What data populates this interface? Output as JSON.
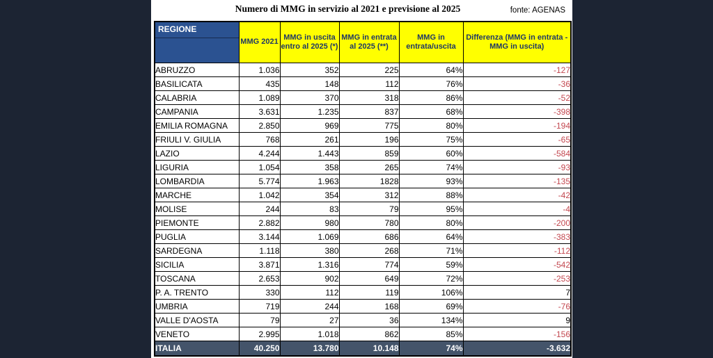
{
  "page": {
    "title": "Numero di MMG in servizio al 2021 e previsione al 2025",
    "source_label": "fonte: AGENAS"
  },
  "colors": {
    "page_background": "#1c2433",
    "panel_background": "#ffffff",
    "header_yellow": "#ffff00",
    "header_text_navy": "#1f3864",
    "regione_header_blue": "#2b5291",
    "total_row_background": "#44546a",
    "negative_value_red": "#c2474f"
  },
  "table": {
    "columns": [
      {
        "key": "regione",
        "label": "REGIONE"
      },
      {
        "key": "mmg2021",
        "label": "MMG 2021"
      },
      {
        "key": "uscita",
        "label": "MMG in uscita entro al 2025 (*)"
      },
      {
        "key": "entrata",
        "label": "MMG in entrata al 2025 (**)"
      },
      {
        "key": "ratio",
        "label": "MMG in entrata/uscita"
      },
      {
        "key": "diff",
        "label": "Differenza (MMG in entrata - MMG in uscita)"
      }
    ],
    "rows": [
      {
        "regione": "ABRUZZO",
        "mmg2021": "1.036",
        "uscita": "352",
        "entrata": "225",
        "ratio": "64%",
        "diff": "-127"
      },
      {
        "regione": "BASILICATA",
        "mmg2021": "435",
        "uscita": "148",
        "entrata": "112",
        "ratio": "76%",
        "diff": "-36"
      },
      {
        "regione": "CALABRIA",
        "mmg2021": "1.089",
        "uscita": "370",
        "entrata": "318",
        "ratio": "86%",
        "diff": "-52"
      },
      {
        "regione": "CAMPANIA",
        "mmg2021": "3.631",
        "uscita": "1.235",
        "entrata": "837",
        "ratio": "68%",
        "diff": "-398"
      },
      {
        "regione": "EMILIA ROMAGNA",
        "mmg2021": "2.850",
        "uscita": "969",
        "entrata": "775",
        "ratio": "80%",
        "diff": "-194"
      },
      {
        "regione": "FRIULI V. GIULIA",
        "mmg2021": "768",
        "uscita": "261",
        "entrata": "196",
        "ratio": "75%",
        "diff": "-65"
      },
      {
        "regione": "LAZIO",
        "mmg2021": "4.244",
        "uscita": "1.443",
        "entrata": "859",
        "ratio": "60%",
        "diff": "-584"
      },
      {
        "regione": "LIGURIA",
        "mmg2021": "1.054",
        "uscita": "358",
        "entrata": "265",
        "ratio": "74%",
        "diff": "-93"
      },
      {
        "regione": "LOMBARDIA",
        "mmg2021": "5.774",
        "uscita": "1.963",
        "entrata": "1828",
        "ratio": "93%",
        "diff": "-135"
      },
      {
        "regione": "MARCHE",
        "mmg2021": "1.042",
        "uscita": "354",
        "entrata": "312",
        "ratio": "88%",
        "diff": "-42"
      },
      {
        "regione": "MOLISE",
        "mmg2021": "244",
        "uscita": "83",
        "entrata": "79",
        "ratio": "95%",
        "diff": "-4"
      },
      {
        "regione": "PIEMONTE",
        "mmg2021": "2.882",
        "uscita": "980",
        "entrata": "780",
        "ratio": "80%",
        "diff": "-200"
      },
      {
        "regione": "PUGLIA",
        "mmg2021": "3.144",
        "uscita": "1.069",
        "entrata": "686",
        "ratio": "64%",
        "diff": "-383"
      },
      {
        "regione": "SARDEGNA",
        "mmg2021": "1.118",
        "uscita": "380",
        "entrata": "268",
        "ratio": "71%",
        "diff": "-112"
      },
      {
        "regione": "SICILIA",
        "mmg2021": "3.871",
        "uscita": "1.316",
        "entrata": "774",
        "ratio": "59%",
        "diff": "-542"
      },
      {
        "regione": "TOSCANA",
        "mmg2021": "2.653",
        "uscita": "902",
        "entrata": "649",
        "ratio": "72%",
        "diff": "-253"
      },
      {
        "regione": "P. A. TRENTO",
        "mmg2021": "330",
        "uscita": "112",
        "entrata": "119",
        "ratio": "106%",
        "diff": "7"
      },
      {
        "regione": "UMBRIA",
        "mmg2021": "719",
        "uscita": "244",
        "entrata": "168",
        "ratio": "69%",
        "diff": "-76"
      },
      {
        "regione": "VALLE D'AOSTA",
        "mmg2021": "79",
        "uscita": "27",
        "entrata": "36",
        "ratio": "134%",
        "diff": "9"
      },
      {
        "regione": "VENETO",
        "mmg2021": "2.995",
        "uscita": "1.018",
        "entrata": "862",
        "ratio": "85%",
        "diff": "-156"
      }
    ],
    "total": {
      "regione": "ITALIA",
      "mmg2021": "40.250",
      "uscita": "13.780",
      "entrata": "10.148",
      "ratio": "74%",
      "diff": "-3.632"
    }
  }
}
